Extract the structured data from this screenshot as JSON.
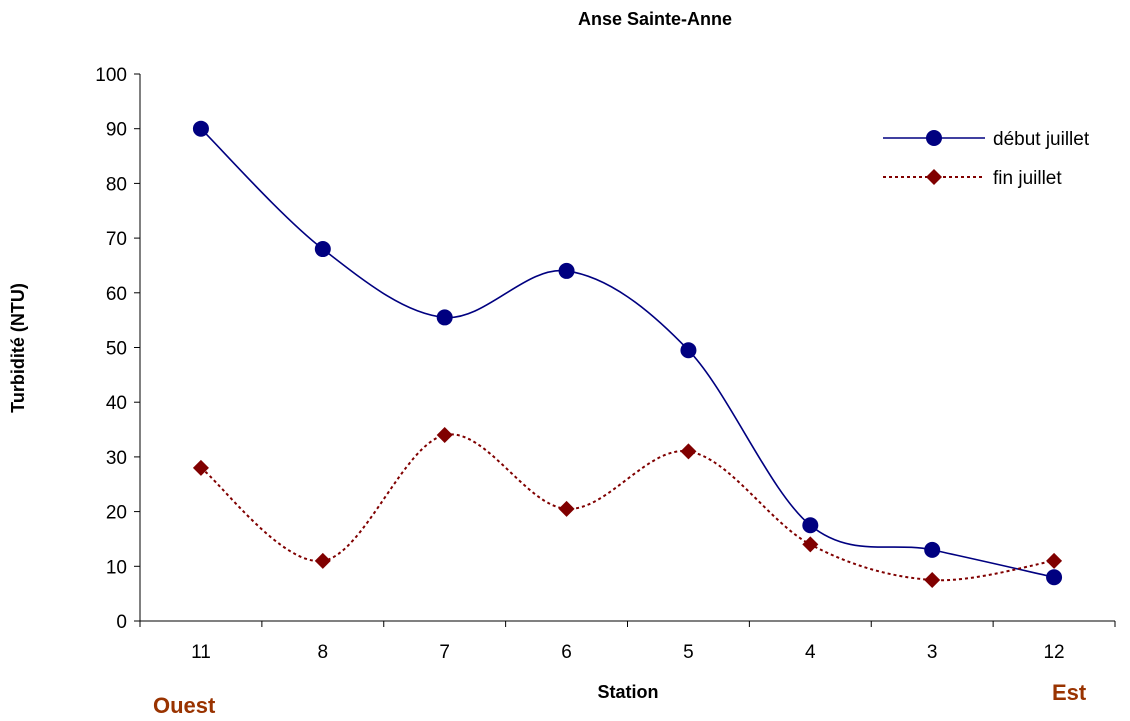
{
  "chart_data": {
    "type": "line",
    "title": "Anse Sainte-Anne",
    "xlabel": "Station",
    "ylabel": "Turbidité (NTU)",
    "categories": [
      "11",
      "8",
      "7",
      "6",
      "5",
      "4",
      "3",
      "12"
    ],
    "ylim": [
      0,
      100
    ],
    "yticks": [
      0,
      10,
      20,
      30,
      40,
      50,
      60,
      70,
      80,
      90,
      100
    ],
    "grid": false,
    "legend_position": "top-right",
    "series": [
      {
        "name": "début juillet",
        "values": [
          90,
          68,
          55.5,
          64,
          49.5,
          17.5,
          13,
          8
        ],
        "color": "#000080",
        "line_style": "solid",
        "marker": "circle"
      },
      {
        "name": "fin juillet",
        "values": [
          28,
          11,
          34,
          20.5,
          31,
          14,
          7.5,
          11
        ],
        "color": "#800000",
        "line_style": "dotted",
        "marker": "diamond"
      }
    ],
    "annotations": {
      "left": "Ouest",
      "right": "Est"
    },
    "annotation_color": "#993300"
  }
}
